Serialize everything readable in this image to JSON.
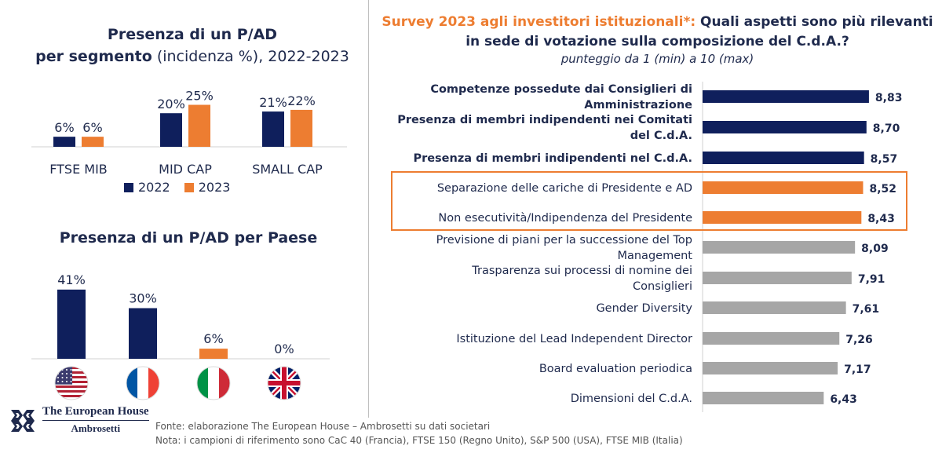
{
  "colors": {
    "navy": "#0f1f5c",
    "orange": "#ed7d31",
    "grey": "#a6a6a6",
    "text": "#1f2a4d"
  },
  "segment_title": {
    "line1": "Presenza di un P/AD",
    "line2_bold": "per segmento",
    "line2_rest": " (incidenza %), 2022-2023"
  },
  "country_title": "Presenza di un P/AD per Paese",
  "survey": {
    "title_accent": "Survey 2023 agli investitori istituzionali*:",
    "title_rest": " Quali aspetti sono più rilevanti in sede di votazione sulla composizione del C.d.A.?",
    "subtitle": "punteggio da 1 (min) a 10 (max)"
  },
  "footer": {
    "line1": "Fonte: elaborazione The European House – Ambrosetti su dati societari",
    "line2": "Nota: i campioni di riferimento sono CaC 40 (Francia), FTSE 150 (Regno Unito), S&P 500 (USA), FTSE MIB (Italia)"
  },
  "logo": {
    "line1": "The European House",
    "line2": "Ambrosetti"
  },
  "chart_data": [
    {
      "type": "bar",
      "categories": [
        "FTSE MIB",
        "MID CAP",
        "SMALL CAP"
      ],
      "series": [
        {
          "name": "2022",
          "color": "#0f1f5c",
          "values": [
            6,
            20,
            21
          ],
          "labels": [
            "6%",
            "20%",
            "21%"
          ]
        },
        {
          "name": "2023",
          "color": "#ed7d31",
          "values": [
            6,
            25,
            22
          ],
          "labels": [
            "6%",
            "25%",
            "22%"
          ]
        }
      ],
      "legend": "bottom",
      "grid": false
    },
    {
      "type": "bar",
      "categories": [
        "USA",
        "Francia",
        "Italia",
        "Regno Unito"
      ],
      "icons": [
        "usa-flag-icon",
        "france-flag-icon",
        "italy-flag-icon",
        "uk-flag-icon"
      ],
      "values": [
        41,
        30,
        6,
        0
      ],
      "labels": [
        "41%",
        "30%",
        "6%",
        "0%"
      ],
      "colors": [
        "#0f1f5c",
        "#0f1f5c",
        "#ed7d31",
        "#0f1f5c"
      ],
      "grid": false
    },
    {
      "type": "bar",
      "orientation": "horizontal",
      "categories": [
        "Competenze possedute dai Consiglieri di Amministrazione",
        "Presenza di membri indipendenti nei Comitati del C.d.A.",
        "Presenza di membri indipendenti nel C.d.A.",
        "Separazione delle cariche di Presidente e AD",
        "Non esecutività/Indipendenza del Presidente",
        "Previsione di piani per la successione del Top Management",
        "Trasparenza sui processi di nomine dei Consiglieri",
        "Gender Diversity",
        "Istituzione del Lead Independent Director",
        "Board evaluation periodica",
        "Dimensioni del C.d.A."
      ],
      "category_lines": [
        [
          "Competenze possedute dai Consiglieri di",
          "Amministrazione"
        ],
        [
          "Presenza di membri indipendenti nei Comitati",
          "del C.d.A."
        ],
        [
          "Presenza di membri indipendenti nel C.d.A."
        ],
        [
          "Separazione delle cariche di Presidente e AD"
        ],
        [
          "Non esecutività/Indipendenza del Presidente"
        ],
        [
          "Previsione di piani per la successione del Top",
          "Management"
        ],
        [
          "Trasparenza sui processi di nomine dei",
          "Consiglieri"
        ],
        [
          "Gender Diversity"
        ],
        [
          "Istituzione del Lead Independent Director"
        ],
        [
          "Board evaluation periodica"
        ],
        [
          "Dimensioni del C.d.A."
        ]
      ],
      "values": [
        8.83,
        8.7,
        8.57,
        8.52,
        8.43,
        8.09,
        7.91,
        7.61,
        7.26,
        7.17,
        6.43
      ],
      "labels": [
        "8,83",
        "8,70",
        "8,57",
        "8,52",
        "8,43",
        "8,09",
        "7,91",
        "7,61",
        "7,26",
        "7,17",
        "6,43"
      ],
      "colors": [
        "#0f1f5c",
        "#0f1f5c",
        "#0f1f5c",
        "#ed7d31",
        "#ed7d31",
        "#a6a6a6",
        "#a6a6a6",
        "#a6a6a6",
        "#a6a6a6",
        "#a6a6a6",
        "#a6a6a6"
      ],
      "bold": [
        true,
        true,
        true,
        false,
        false,
        false,
        false,
        false,
        false,
        false,
        false
      ],
      "highlighted": [
        false,
        false,
        false,
        true,
        true,
        false,
        false,
        false,
        false,
        false,
        false
      ],
      "xlim": [
        0,
        10
      ],
      "grid": false
    }
  ]
}
